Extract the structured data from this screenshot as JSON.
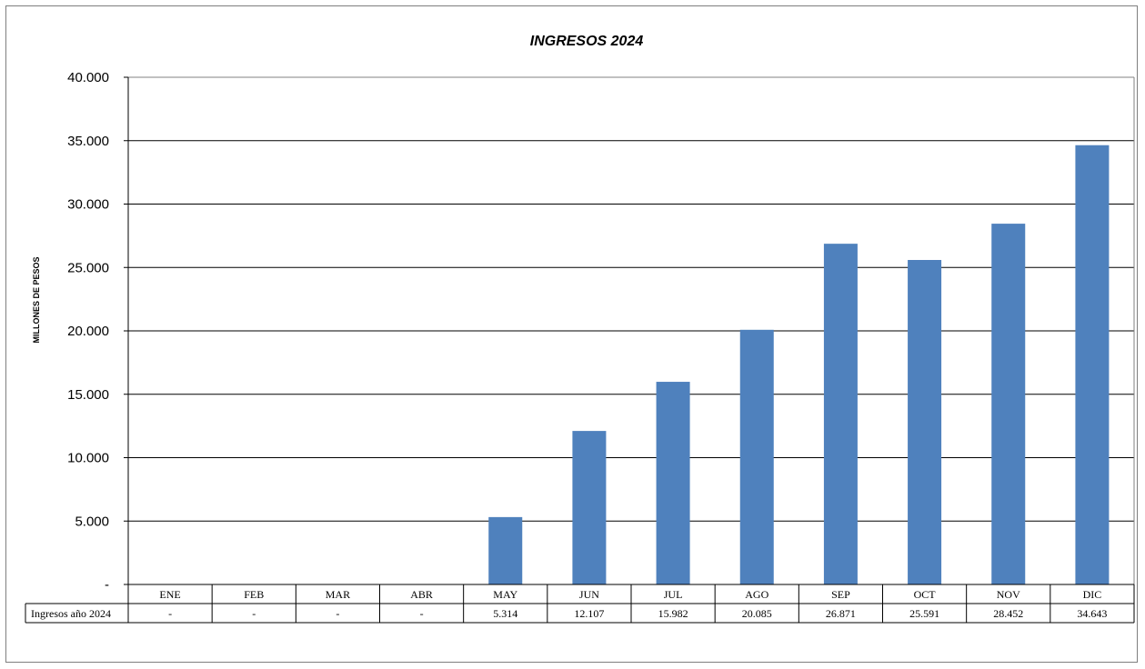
{
  "chart_data": {
    "type": "bar",
    "title": "INGRESOS 2024",
    "ylabel": "MILLONES DE PESOS",
    "xlabel": "",
    "categories": [
      "ENE",
      "FEB",
      "MAR",
      "ABR",
      "MAY",
      "JUN",
      "JUL",
      "AGO",
      "SEP",
      "OCT",
      "NOV",
      "DIC"
    ],
    "series": [
      {
        "name": "Ingresos año 2024",
        "values": [
          0,
          0,
          0,
          0,
          5314,
          12107,
          15982,
          20085,
          26871,
          25591,
          28452,
          34643
        ],
        "labels": [
          "-",
          "-",
          "-",
          "-",
          "5.314",
          "12.107",
          "15.982",
          "20.085",
          "26.871",
          "25.591",
          "28.452",
          "34.643"
        ]
      }
    ],
    "ylim": [
      0,
      40000
    ],
    "yticks": [
      0,
      5000,
      10000,
      15000,
      20000,
      25000,
      30000,
      35000,
      40000
    ],
    "ytick_labels": [
      "-",
      "5.000",
      "10.000",
      "15.000",
      "20.000",
      "25.000",
      "30.000",
      "35.000",
      "40.000"
    ],
    "grid": true,
    "legend": "data-table",
    "bar_color": "#4f81bd"
  }
}
